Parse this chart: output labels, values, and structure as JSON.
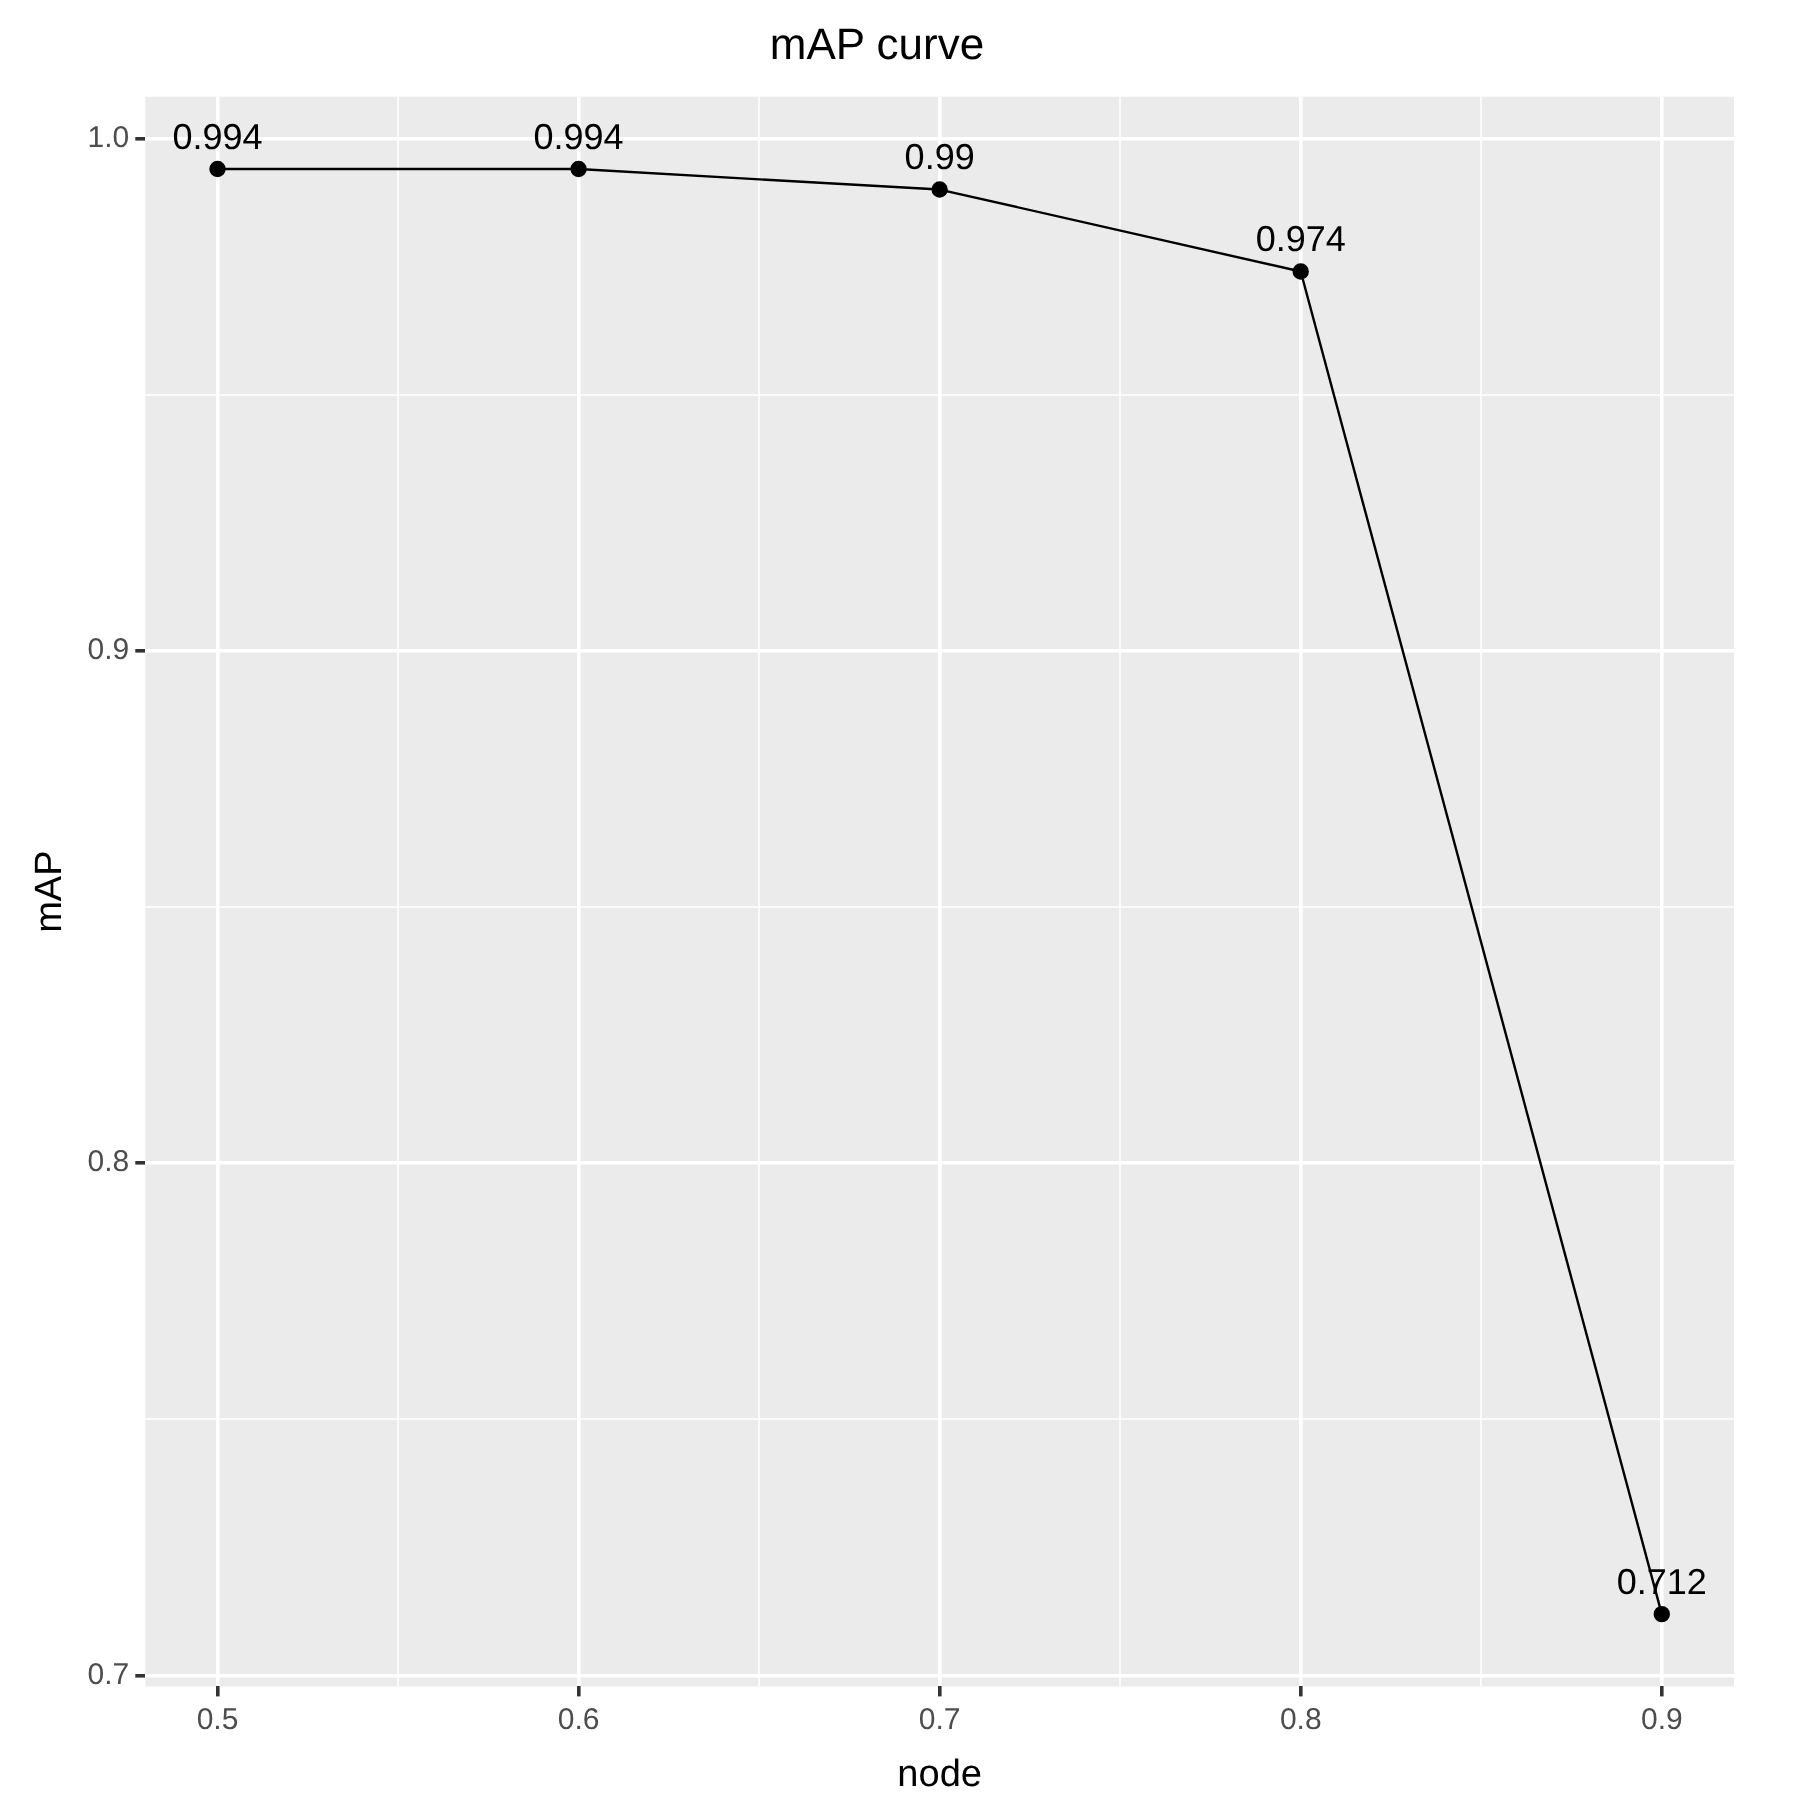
{
  "chart_data": {
    "type": "line",
    "title": "mAP curve",
    "xlabel": "node",
    "ylabel": "mAP",
    "x": [
      0.5,
      0.6,
      0.7,
      0.8,
      0.9
    ],
    "series": [
      {
        "color": "#000000",
        "values": [
          0.994,
          0.994,
          0.99,
          0.974,
          0.712
        ]
      }
    ],
    "data_labels": true,
    "marker": "circle",
    "line_style": "solid",
    "grid": true,
    "legend": false,
    "xlim": [
      0.48,
      0.92
    ],
    "xticks": [
      0.5,
      {
        "value": 0.55,
        "label": null
      },
      0.6,
      {
        "value": 0.65,
        "label": null
      },
      0.7,
      {
        "value": 0.75,
        "label": null
      },
      0.8,
      {
        "value": 0.85,
        "label": null
      },
      0.9
    ],
    "ylim": [
      0.6979,
      1.0081
    ],
    "yticks": [
      0.7,
      {
        "value": 0.75,
        "label": null
      },
      0.8,
      {
        "value": 0.85,
        "label": null
      },
      0.9,
      {
        "value": 0.95,
        "label": null
      },
      {
        "value": 1,
        "label": "1.0"
      }
    ]
  }
}
